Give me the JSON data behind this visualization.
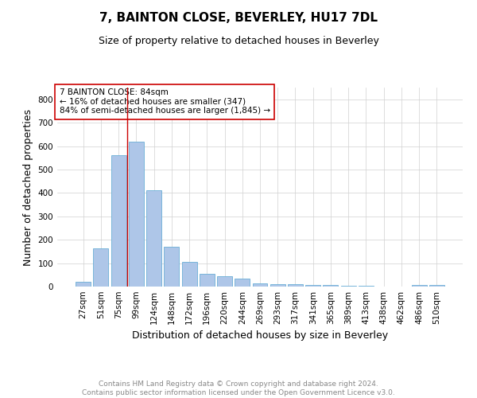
{
  "title": "7, BAINTON CLOSE, BEVERLEY, HU17 7DL",
  "subtitle": "Size of property relative to detached houses in Beverley",
  "xlabel": "Distribution of detached houses by size in Beverley",
  "ylabel": "Number of detached properties",
  "categories": [
    "27sqm",
    "51sqm",
    "75sqm",
    "99sqm",
    "124sqm",
    "148sqm",
    "172sqm",
    "196sqm",
    "220sqm",
    "244sqm",
    "269sqm",
    "293sqm",
    "317sqm",
    "341sqm",
    "365sqm",
    "389sqm",
    "413sqm",
    "438sqm",
    "462sqm",
    "486sqm",
    "510sqm"
  ],
  "values": [
    20,
    163,
    560,
    620,
    410,
    170,
    105,
    54,
    43,
    33,
    15,
    10,
    10,
    8,
    8,
    5,
    5,
    0,
    0,
    7,
    6
  ],
  "bar_color": "#aec6e8",
  "bar_edge_color": "#6aaed6",
  "property_line_x": 2.5,
  "property_line_color": "#cc0000",
  "annotation_text": "7 BAINTON CLOSE: 84sqm\n← 16% of detached houses are smaller (347)\n84% of semi-detached houses are larger (1,845) →",
  "annotation_box_color": "#ffffff",
  "annotation_box_edge_color": "#cc0000",
  "ylim": [
    0,
    850
  ],
  "yticks": [
    0,
    100,
    200,
    300,
    400,
    500,
    600,
    700,
    800
  ],
  "footer": "Contains HM Land Registry data © Crown copyright and database right 2024.\nContains public sector information licensed under the Open Government Licence v3.0.",
  "background_color": "#ffffff",
  "grid_color": "#d0d0d0",
  "title_fontsize": 11,
  "subtitle_fontsize": 9,
  "axis_label_fontsize": 9,
  "tick_fontsize": 7.5,
  "footer_fontsize": 6.5,
  "annotation_fontsize": 7.5
}
